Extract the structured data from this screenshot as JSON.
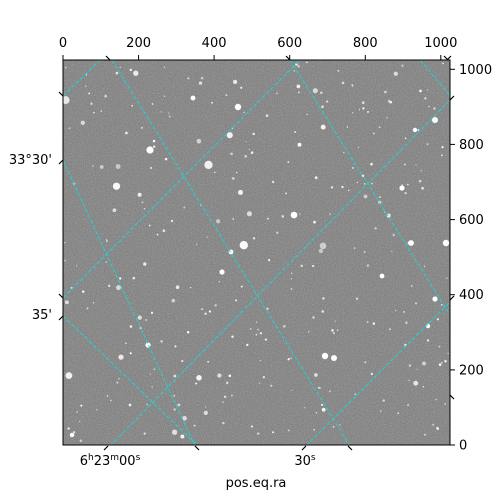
{
  "figure": {
    "xlabel": "pos.eq.ra",
    "ra_ticks": [
      {
        "h": "6",
        "m": "23",
        "s": "00",
        "label_kind": "hms"
      },
      {
        "s": "30",
        "label_kind": "s"
      }
    ],
    "dec_ticks": [
      {
        "text": "33°30'"
      },
      {
        "text": "35'"
      }
    ],
    "top_ticks": [
      "0",
      "200",
      "400",
      "600",
      "800",
      "1000"
    ],
    "right_ticks": [
      "0",
      "200",
      "400",
      "600",
      "800",
      "1000"
    ],
    "colors": {
      "grid": "#22d3d3",
      "frame": "#000000",
      "sky_background": "#7a7a7a"
    }
  }
}
